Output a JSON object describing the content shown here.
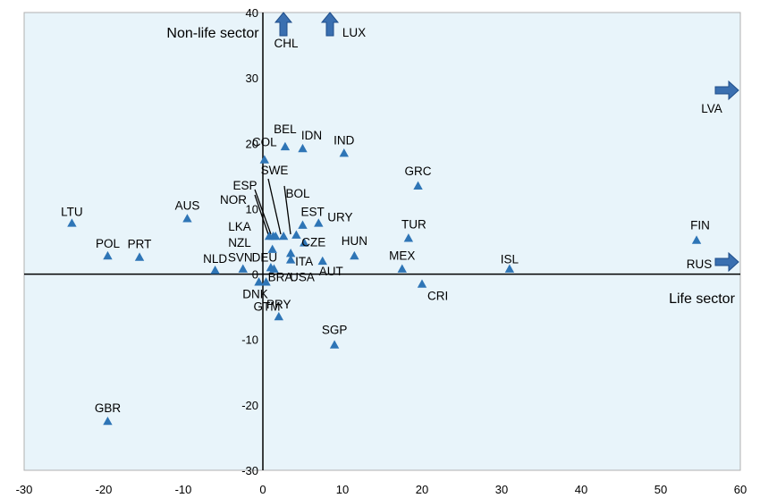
{
  "chart_data": {
    "type": "scatter",
    "title": "",
    "xlabel": "Life sector",
    "ylabel": "Non-life sector",
    "xlim": [
      -30,
      60
    ],
    "ylim": [
      -30,
      40
    ],
    "xticks": [
      -30,
      -20,
      -10,
      0,
      10,
      20,
      30,
      40,
      50,
      60
    ],
    "yticks": [
      -30,
      -20,
      -10,
      0,
      10,
      20,
      30,
      40
    ],
    "grid": false,
    "colors": {
      "marker": "#2E75B6",
      "background": "#E8F4FA",
      "axis": "#000000"
    },
    "points": [
      {
        "label": "LTU",
        "x": -24,
        "y": 7.8
      },
      {
        "label": "POL",
        "x": -19.5,
        "y": 2.8
      },
      {
        "label": "PRT",
        "x": -15.5,
        "y": 2.6
      },
      {
        "label": "AUS",
        "x": -9.5,
        "y": 8.5
      },
      {
        "label": "NLD",
        "x": -6,
        "y": 0.6
      },
      {
        "label": "SVN",
        "x": -2.5,
        "y": 0.8
      },
      {
        "label": "DNK",
        "x": -0.5,
        "y": -1.2
      },
      {
        "label": "GBR",
        "x": -19.5,
        "y": -22.5
      },
      {
        "label": "COL",
        "x": 0.2,
        "y": 17.5
      },
      {
        "label": "BEL",
        "x": 2.8,
        "y": 19.5
      },
      {
        "label": "IDN",
        "x": 5,
        "y": 19.2
      },
      {
        "label": "IND",
        "x": 10.2,
        "y": 18.5
      },
      {
        "label": "GRC",
        "x": 19.5,
        "y": 13.5
      },
      {
        "label": "ESP",
        "x": 0.8,
        "y": 5.8
      },
      {
        "label": "SWE",
        "x": 2.6,
        "y": 5.8
      },
      {
        "label": "NOR",
        "x": 1.3,
        "y": 5.8
      },
      {
        "label": "BOL",
        "x": 4.2,
        "y": 6
      },
      {
        "label": "LKA",
        "x": 1.6,
        "y": 5.8
      },
      {
        "label": "NZL",
        "x": 1.2,
        "y": 3.8
      },
      {
        "label": "EST",
        "x": 5,
        "y": 7.5
      },
      {
        "label": "URY",
        "x": 7,
        "y": 7.8
      },
      {
        "label": "CZE",
        "x": 5.2,
        "y": 4.8
      },
      {
        "label": "DEU",
        "x": 1,
        "y": 1
      },
      {
        "label": "ITA",
        "x": 3.5,
        "y": 3.2
      },
      {
        "label": "USA",
        "x": 3.5,
        "y": 2.2
      },
      {
        "label": "AUT",
        "x": 7.5,
        "y": 2
      },
      {
        "label": "BRA",
        "x": 1.4,
        "y": 0.8
      },
      {
        "label": "GTM",
        "x": 0.4,
        "y": -1.2
      },
      {
        "label": "PRY",
        "x": 2,
        "y": -6.5
      },
      {
        "label": "HUN",
        "x": 11.5,
        "y": 2.8
      },
      {
        "label": "MEX",
        "x": 17.5,
        "y": 0.8
      },
      {
        "label": "TUR",
        "x": 18.3,
        "y": 5.5
      },
      {
        "label": "CRI",
        "x": 20,
        "y": -1.5
      },
      {
        "label": "ISL",
        "x": 31,
        "y": 0.8
      },
      {
        "label": "FIN",
        "x": 54.5,
        "y": 5.2
      },
      {
        "label": "SGP",
        "x": 9,
        "y": -10.8
      }
    ],
    "off_chart": [
      {
        "label": "CHL",
        "direction": "up"
      },
      {
        "label": "LUX",
        "direction": "up"
      },
      {
        "label": "LVA",
        "direction": "right"
      },
      {
        "label": "RUS",
        "direction": "right"
      }
    ]
  }
}
